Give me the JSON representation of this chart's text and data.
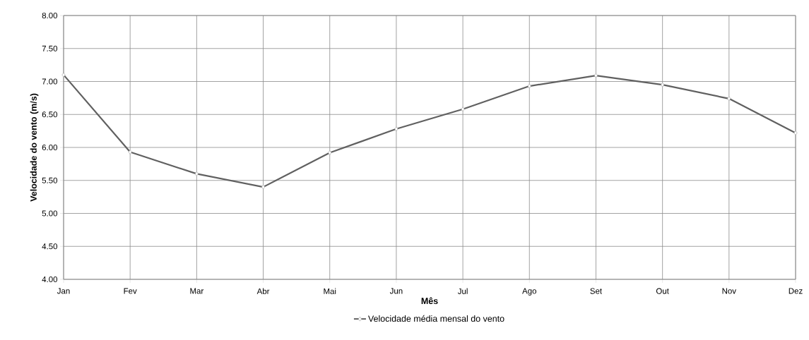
{
  "chart_data": {
    "type": "line",
    "xlabel": "Mês",
    "ylabel": "Velocidade do vento (m/s)",
    "categories": [
      "Jan",
      "Fev",
      "Mar",
      "Abr",
      "Mai",
      "Jun",
      "Jul",
      "Ago",
      "Set",
      "Out",
      "Nov",
      "Dez"
    ],
    "series": [
      {
        "name": "Velocidade média mensal do vento",
        "color": "#606060",
        "values": [
          7.1,
          5.93,
          5.6,
          5.4,
          5.92,
          6.28,
          6.58,
          6.93,
          7.09,
          6.95,
          6.74,
          6.22
        ]
      }
    ],
    "ylim": [
      4.0,
      8.0
    ],
    "yticks": [
      {
        "value": 4.0,
        "label": "4.00"
      },
      {
        "value": 4.5,
        "label": "4.50"
      },
      {
        "value": 5.0,
        "label": "5.00"
      },
      {
        "value": 5.5,
        "label": "5.50"
      },
      {
        "value": 6.0,
        "label": "6.00"
      },
      {
        "value": 6.5,
        "label": "6.50"
      },
      {
        "value": 7.0,
        "label": "7.00"
      },
      {
        "value": 7.5,
        "label": "7.50"
      },
      {
        "value": 8.0,
        "label": "8.00"
      }
    ],
    "grid": true,
    "legend": "bottom",
    "marker": "diamond",
    "line_style": "solid"
  }
}
